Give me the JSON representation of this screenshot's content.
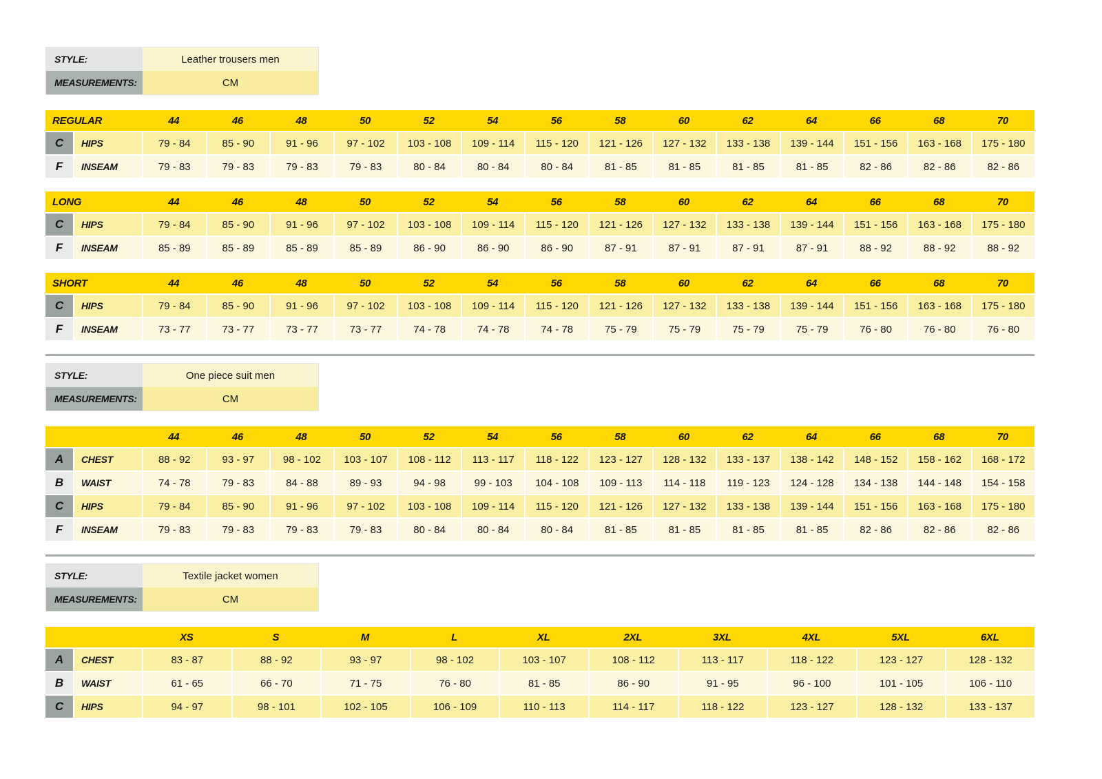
{
  "colors": {
    "header_yellow": "#ffd703",
    "row_yellow": "#faf0a4",
    "row_cream": "#fcf8e0",
    "letter_dark": "#9ca4a0",
    "letter_light": "#e8eae8",
    "style_label_light": "#e4e6e3",
    "style_label_dark": "#a9b2ac",
    "style_value_light": "#fbf5cf",
    "style_value_dark": "#f8ed9f",
    "divider": "#a5aba8"
  },
  "sections": [
    {
      "style_label": "STYLE:",
      "style_value": "Leather trousers men",
      "measurements_label": "MEASUREMENTS:",
      "measurements_value": "CM",
      "divider_after": true,
      "tables": [
        {
          "title": "REGULAR",
          "sizes": [
            "44",
            "46",
            "48",
            "50",
            "52",
            "54",
            "56",
            "58",
            "60",
            "62",
            "64",
            "66",
            "68",
            "70"
          ],
          "rows": [
            {
              "letter": "C",
              "label": "HIPS",
              "values": [
                "79 - 84",
                "85 - 90",
                "91 - 96",
                "97 - 102",
                "103 - 108",
                "109 - 114",
                "115 - 120",
                "121 - 126",
                "127 - 132",
                "133 - 138",
                "139 - 144",
                "151 - 156",
                "163 - 168",
                "175 - 180"
              ]
            },
            {
              "letter": "F",
              "label": "INSEAM",
              "values": [
                "79 - 83",
                "79 - 83",
                "79 - 83",
                "79 - 83",
                "80 - 84",
                "80 - 84",
                "80 - 84",
                "81 - 85",
                "81 - 85",
                "81 - 85",
                "81 - 85",
                "82 - 86",
                "82 - 86",
                "82 - 86"
              ]
            }
          ]
        },
        {
          "title": "LONG",
          "sizes": [
            "44",
            "46",
            "48",
            "50",
            "52",
            "54",
            "56",
            "58",
            "60",
            "62",
            "64",
            "66",
            "68",
            "70"
          ],
          "rows": [
            {
              "letter": "C",
              "label": "HIPS",
              "values": [
                "79 - 84",
                "85 - 90",
                "91 - 96",
                "97 - 102",
                "103 - 108",
                "109 - 114",
                "115 - 120",
                "121 - 126",
                "127 - 132",
                "133 - 138",
                "139 - 144",
                "151 - 156",
                "163 - 168",
                "175 - 180"
              ]
            },
            {
              "letter": "F",
              "label": "INSEAM",
              "values": [
                "85 - 89",
                "85 - 89",
                "85 - 89",
                "85 - 89",
                "86 - 90",
                "86 - 90",
                "86 - 90",
                "87 - 91",
                "87 - 91",
                "87 - 91",
                "87 - 91",
                "88 - 92",
                "88 - 92",
                "88 - 92"
              ]
            }
          ]
        },
        {
          "title": "SHORT",
          "sizes": [
            "44",
            "46",
            "48",
            "50",
            "52",
            "54",
            "56",
            "58",
            "60",
            "62",
            "64",
            "66",
            "68",
            "70"
          ],
          "rows": [
            {
              "letter": "C",
              "label": "HIPS",
              "values": [
                "79 - 84",
                "85 - 90",
                "91 - 96",
                "97 - 102",
                "103 - 108",
                "109 - 114",
                "115 - 120",
                "121 - 126",
                "127 - 132",
                "133 - 138",
                "139 - 144",
                "151 - 156",
                "163 - 168",
                "175 - 180"
              ]
            },
            {
              "letter": "F",
              "label": "INSEAM",
              "values": [
                "73 - 77",
                "73 - 77",
                "73 - 77",
                "73 - 77",
                "74 - 78",
                "74 - 78",
                "74 - 78",
                "75 - 79",
                "75 - 79",
                "75 - 79",
                "75 - 79",
                "76 - 80",
                "76 - 80",
                "76 - 80"
              ]
            }
          ]
        }
      ]
    },
    {
      "style_label": "STYLE:",
      "style_value": "One piece suit men",
      "measurements_label": "MEASUREMENTS:",
      "measurements_value": "CM",
      "divider_after": true,
      "tables": [
        {
          "title": "",
          "sizes": [
            "44",
            "46",
            "48",
            "50",
            "52",
            "54",
            "56",
            "58",
            "60",
            "62",
            "64",
            "66",
            "68",
            "70"
          ],
          "rows": [
            {
              "letter": "A",
              "label": "CHEST",
              "values": [
                "88 - 92",
                "93 - 97",
                "98 - 102",
                "103 - 107",
                "108 - 112",
                "113 - 117",
                "118 - 122",
                "123 - 127",
                "128 - 132",
                "133 - 137",
                "138 - 142",
                "148 - 152",
                "158 - 162",
                "168 - 172"
              ]
            },
            {
              "letter": "B",
              "label": "WAIST",
              "values": [
                "74 - 78",
                "79 - 83",
                "84 - 88",
                "89 - 93",
                "94 - 98",
                "99 - 103",
                "104 - 108",
                "109 - 113",
                "114 - 118",
                "119 - 123",
                "124 - 128",
                "134 - 138",
                "144 - 148",
                "154 - 158"
              ]
            },
            {
              "letter": "C",
              "label": "HIPS",
              "values": [
                "79 - 84",
                "85 - 90",
                "91 - 96",
                "97 - 102",
                "103 - 108",
                "109 - 114",
                "115 - 120",
                "121 - 126",
                "127 - 132",
                "133 - 138",
                "139 - 144",
                "151 - 156",
                "163 - 168",
                "175 - 180"
              ]
            },
            {
              "letter": "F",
              "label": "INSEAM",
              "values": [
                "79 - 83",
                "79 - 83",
                "79 - 83",
                "79 - 83",
                "80 - 84",
                "80 - 84",
                "80 - 84",
                "81 - 85",
                "81 - 85",
                "81 - 85",
                "81 - 85",
                "82 - 86",
                "82 - 86",
                "82 - 86"
              ]
            }
          ]
        }
      ]
    },
    {
      "style_label": "STYLE:",
      "style_value": "Textile jacket women",
      "measurements_label": "MEASUREMENTS:",
      "measurements_value": "CM",
      "divider_after": false,
      "tables": [
        {
          "title": "",
          "sizes": [
            "XS",
            "S",
            "M",
            "L",
            "XL",
            "2XL",
            "3XL",
            "4XL",
            "5XL",
            "6XL"
          ],
          "rows": [
            {
              "letter": "A",
              "label": "CHEST",
              "values": [
                "83 - 87",
                "88 - 92",
                "93 - 97",
                "98 - 102",
                "103 - 107",
                "108 - 112",
                "113 - 117",
                "118 - 122",
                "123 - 127",
                "128 - 132"
              ]
            },
            {
              "letter": "B",
              "label": "WAIST",
              "values": [
                "61 - 65",
                "66 - 70",
                "71 - 75",
                "76 - 80",
                "81 - 85",
                "86 - 90",
                "91 - 95",
                "96 - 100",
                "101 - 105",
                "106 - 110"
              ]
            },
            {
              "letter": "C",
              "label": "HIPS",
              "values": [
                "94 - 97",
                "98 - 101",
                "102 - 105",
                "106 - 109",
                "110 - 113",
                "114 - 117",
                "118 - 122",
                "123 - 127",
                "128 - 132",
                "133 - 137"
              ]
            }
          ]
        }
      ]
    }
  ]
}
